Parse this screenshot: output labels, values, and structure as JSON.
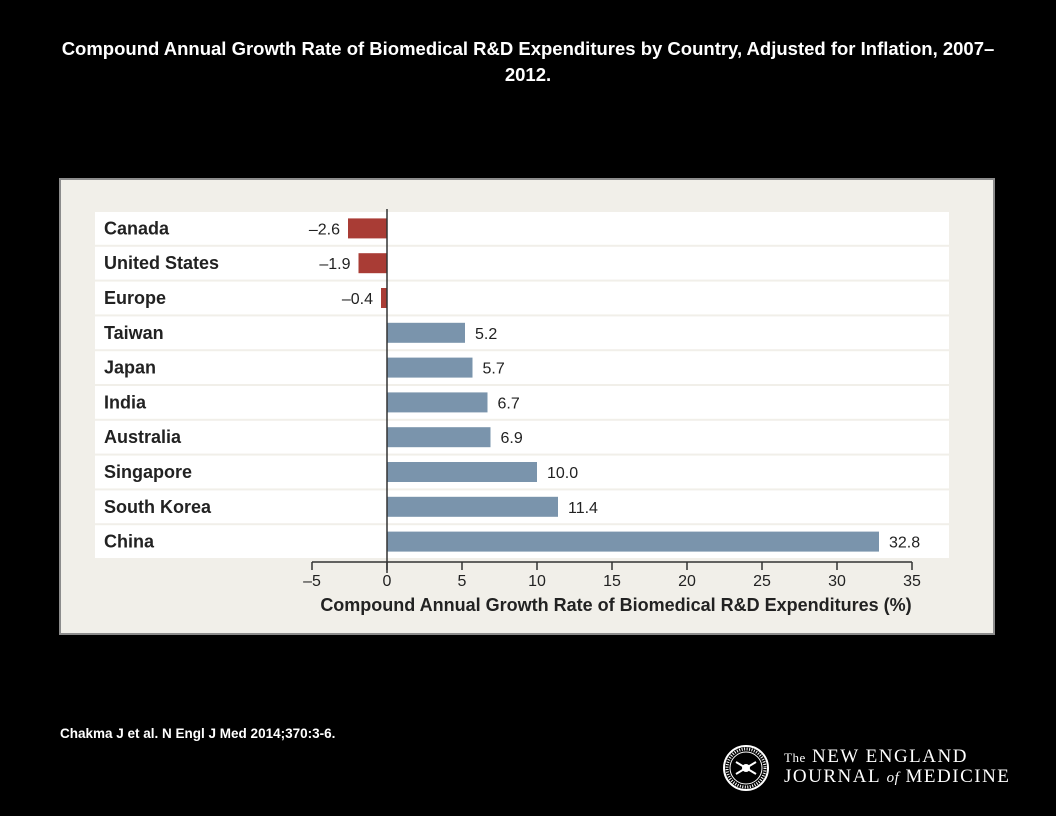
{
  "slide": {
    "title": "Compound Annual Growth Rate of Biomedical R&D Expenditures by Country, Adjusted for Inflation, 2007–2012.",
    "citation": "Chakma J et al. N Engl J Med 2014;370:3-6."
  },
  "journal": {
    "line1_prefix": "The",
    "line1_main": "NEW ENGLAND",
    "line2_part1": "JOURNAL",
    "line2_of": "of",
    "line2_part2": "MEDICINE"
  },
  "colors": {
    "negative": "#a93c35",
    "positive": "#7a94ac",
    "row_band": "#ffffff",
    "panel": "#f1efe9",
    "axis": "#333333"
  },
  "chart_data": {
    "type": "bar",
    "orientation": "horizontal",
    "categories": [
      "Canada",
      "United States",
      "Europe",
      "Taiwan",
      "Japan",
      "India",
      "Australia",
      "Singapore",
      "South Korea",
      "China"
    ],
    "values": [
      -2.6,
      -1.9,
      -0.4,
      5.2,
      5.7,
      6.7,
      6.9,
      10.0,
      11.4,
      32.8
    ],
    "value_labels": [
      "–2.6",
      "–1.9",
      "–0.4",
      "5.2",
      "5.7",
      "6.7",
      "6.9",
      "10.0",
      "11.4",
      "32.8"
    ],
    "xlabel": "Compound Annual Growth Rate of Biomedical R&D Expenditures (%)",
    "xlim": [
      -5,
      35
    ],
    "xticks": [
      -5,
      0,
      5,
      10,
      15,
      20,
      25,
      30,
      35
    ],
    "xtick_labels": [
      "–5",
      "0",
      "5",
      "10",
      "15",
      "20",
      "25",
      "30",
      "35"
    ],
    "grid": false,
    "legend": "none"
  }
}
